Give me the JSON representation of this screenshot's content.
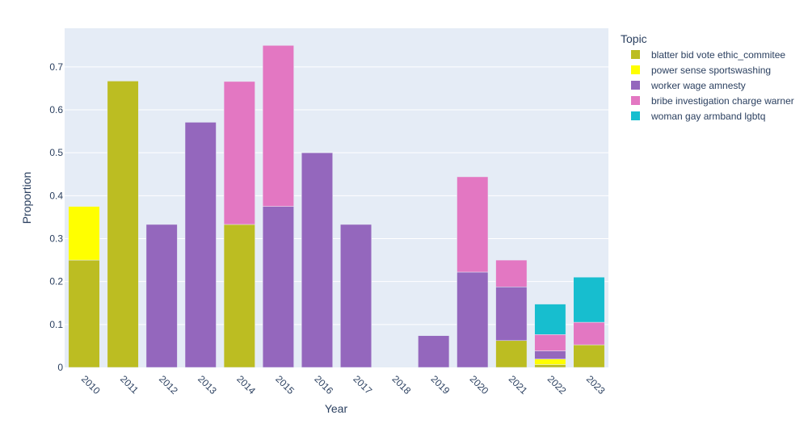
{
  "chart_data": {
    "type": "bar",
    "barmode": "stack",
    "xlabel": "Year",
    "ylabel": "Proportion",
    "ylim": [
      0,
      0.79
    ],
    "yticks": [
      0,
      0.1,
      0.2,
      0.3,
      0.4,
      0.5,
      0.6,
      0.7
    ],
    "ytick_labels": [
      "0",
      "0.1",
      "0.2",
      "0.3",
      "0.4",
      "0.5",
      "0.6",
      "0.7"
    ],
    "grid": true,
    "legend_title": "Topic",
    "legend_position": "top-right outside",
    "categories": [
      "2010",
      "2011",
      "2012",
      "2013",
      "2014",
      "2015",
      "2016",
      "2017",
      "2018",
      "2019",
      "2020",
      "2021",
      "2022",
      "2023"
    ],
    "series": [
      {
        "name": "blatter bid vote ethic_commitee",
        "color": "#bcbd22",
        "values": [
          0.25,
          0.667,
          0,
          0,
          0.333,
          0,
          0,
          0,
          0,
          0,
          0,
          0.0625,
          0.0065,
          0.0526
        ]
      },
      {
        "name": "power sense sportswashing",
        "color": "#ffff00",
        "values": [
          0.125,
          0,
          0,
          0,
          0,
          0,
          0,
          0,
          0,
          0,
          0,
          0,
          0.013,
          0
        ]
      },
      {
        "name": "worker wage amnesty",
        "color": "#9467bd",
        "values": [
          0,
          0,
          0.333,
          0.571,
          0,
          0.375,
          0.5,
          0.333,
          0,
          0.074,
          0.222,
          0.125,
          0.019,
          0
        ]
      },
      {
        "name": "bribe investigation charge warner",
        "color": "#e377c2",
        "values": [
          0,
          0,
          0,
          0,
          0.333,
          0.375,
          0,
          0,
          0,
          0,
          0.222,
          0.0625,
          0.038,
          0.0526
        ]
      },
      {
        "name": "woman gay armband lgbtq",
        "color": "#17becf",
        "values": [
          0,
          0,
          0,
          0,
          0,
          0,
          0,
          0,
          0,
          0,
          0,
          0,
          0.071,
          0.105
        ]
      }
    ]
  }
}
